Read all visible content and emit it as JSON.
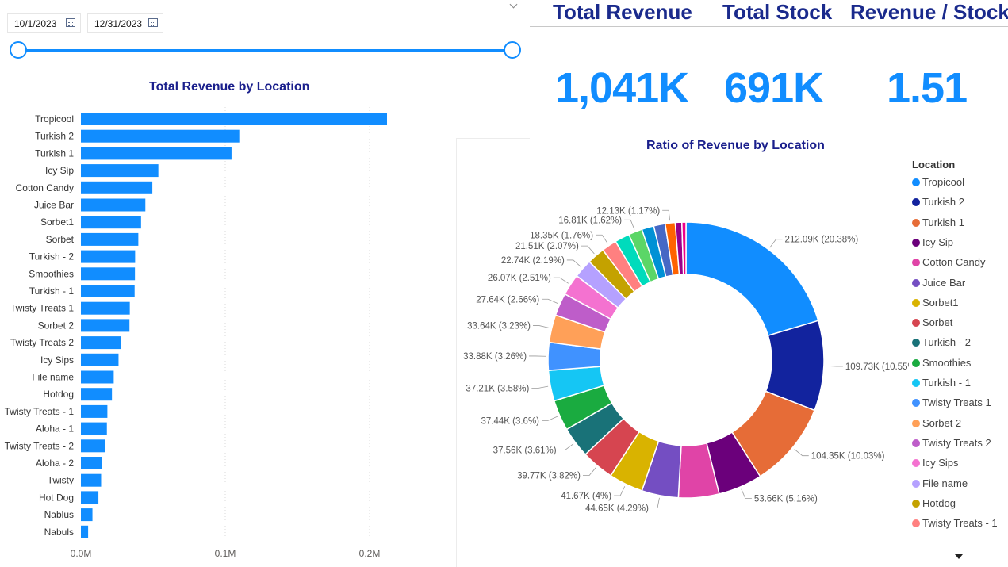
{
  "filters": {
    "start_date": "10/1/2023",
    "end_date": "12/31/2023",
    "calendar_icon": "calendar-icon"
  },
  "kpis": [
    {
      "label": "Total Revenue",
      "value": "1,041K"
    },
    {
      "label": "Total Stock",
      "value": "691K"
    },
    {
      "label": "Revenue / Stock",
      "value": "1.51"
    }
  ],
  "colors": {
    "accent": "#118dff",
    "title": "#1a1f8c"
  },
  "chart_data": [
    {
      "type": "bar",
      "orientation": "horizontal",
      "title": "Total Revenue by Location",
      "xlabel": "",
      "ylabel": "",
      "categories": [
        "Tropicool",
        "Turkish 2",
        "Turkish 1",
        "Icy Sip",
        "Cotton Candy",
        "Juice Bar",
        "Sorbet1",
        "Sorbet",
        "Turkish - 2",
        "Smoothies",
        "Turkish - 1",
        "Twisty Treats 1",
        "Sorbet 2",
        "Twisty Treats 2",
        "Icy Sips",
        "File name",
        "Hotdog",
        "Twisty Treats - 1",
        "Aloha - 1",
        "Twisty Treats - 2",
        "Aloha - 2",
        "Twisty",
        "Hot Dog",
        "Nablus",
        "Nabuls"
      ],
      "values": [
        212090,
        109730,
        104350,
        53660,
        49500,
        44650,
        41670,
        39770,
        37560,
        37440,
        37210,
        33880,
        33640,
        27640,
        26070,
        22740,
        21510,
        18350,
        18000,
        16810,
        14800,
        14000,
        12130,
        8000,
        5000
      ],
      "xlim": [
        0,
        260000
      ],
      "xticks": [
        "0.0M",
        "0.1M",
        "0.2M"
      ],
      "xtick_values": [
        0,
        100000,
        200000
      ],
      "grid": true
    },
    {
      "type": "pie",
      "variant": "donut",
      "title": "Ratio of Revenue by Location",
      "legend_title": "Location",
      "legend_position": "right",
      "labels": [
        "Tropicool",
        "Turkish 2",
        "Turkish 1",
        "Icy Sip",
        "Cotton Candy",
        "Juice Bar",
        "Sorbet1",
        "Sorbet",
        "Turkish - 2",
        "Smoothies",
        "Turkish - 1",
        "Twisty Treats 1",
        "Sorbet 2",
        "Twisty Treats 2",
        "Icy Sips",
        "File name",
        "Hotdog",
        "Twisty Treats - 1",
        "Aloha - 1",
        "Twisty Treats - 2",
        "Aloha - 2",
        "Twisty",
        "Hot Dog",
        "Nablus",
        "Nabuls"
      ],
      "values": [
        212090,
        109730,
        104350,
        53660,
        49500,
        44650,
        41670,
        39770,
        37560,
        37440,
        37210,
        33880,
        33640,
        27640,
        26070,
        22740,
        21510,
        18350,
        18000,
        16810,
        14800,
        14000,
        12130,
        8000,
        5000
      ],
      "colors": [
        "#118dff",
        "#12239e",
        "#e66c37",
        "#6b007b",
        "#e044a7",
        "#744ec2",
        "#d9b300",
        "#d64550",
        "#197278",
        "#1aab40",
        "#15c6f4",
        "#4092ff",
        "#ffa058",
        "#be5dc9",
        "#f472d0",
        "#b5a1ff",
        "#c4a200",
        "#ff8080",
        "#00dbbc",
        "#5bd667",
        "#0091d5",
        "#4668c5",
        "#ff6300",
        "#99008a",
        "#ec008c"
      ],
      "data_labels": [
        "212.09K (20.38%)",
        "109.73K (10.55%)",
        "104.35K (10.03%)",
        "53.66K (5.16%)",
        "",
        "44.65K (4.29%)",
        "41.67K (4%)",
        "39.77K (3.82%)",
        "37.56K (3.61%)",
        "37.44K (3.6%)",
        "37.21K (3.58%)",
        "33.88K (3.26%)",
        "33.64K (3.23%)",
        "27.64K (2.66%)",
        "26.07K (2.51%)",
        "22.74K (2.19%)",
        "21.51K (2.07%)",
        "18.35K (1.76%)",
        "",
        "16.81K (1.62%)",
        "",
        "",
        "12.13K (1.17%)",
        "",
        ""
      ],
      "legend_visible": [
        "Tropicool",
        "Turkish 2",
        "Turkish 1",
        "Icy Sip",
        "Cotton Candy",
        "Juice Bar",
        "Sorbet1",
        "Sorbet",
        "Turkish - 2",
        "Smoothies",
        "Turkish - 1",
        "Twisty Treats 1",
        "Sorbet 2",
        "Twisty Treats 2",
        "Icy Sips",
        "File name",
        "Hotdog",
        "Twisty Treats - 1"
      ]
    }
  ]
}
